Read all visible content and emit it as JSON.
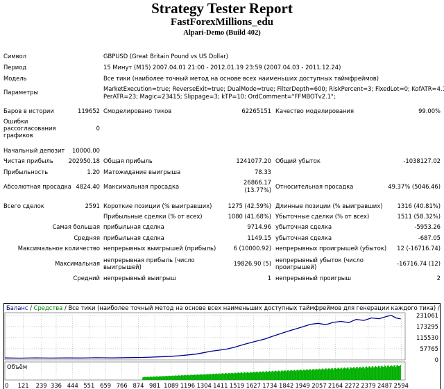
{
  "header": {
    "title": "Strategy Tester Report",
    "ea_name": "FastForexMillions_edu",
    "server": "Alpari-Demo (Build 402)"
  },
  "info": {
    "symbol_label": "Символ",
    "symbol_value": "GBPUSD (Great Britain Pound vs US Dollar)",
    "period_label": "Период",
    "period_value": "15 Минут (M15) 2007.04.01 21:00 - 2012.01.19 23:59 (2007.04.03 - 2011.12.24)",
    "model_label": "Модель",
    "model_value": "Все тики (наиболее точный метод на основе всех наименьших доступных таймфреймов)",
    "params_label": "Параметры",
    "params_line1": "MarketExecution=true; ReverseExit=true; DualMode=true; FilterDepth=600; RiskPercent=3; FixedLot=0; KofATR=4.1;",
    "params_line2": "PerATR=23; Magic=23415; Slippage=3; kTP=10; OrdComment=\"FFMBOTv2.1\";"
  },
  "stats": {
    "bars_label": "Баров в истории",
    "bars_value": "119652",
    "ticks_label": "Смоделировано тиков",
    "ticks_value": "62265151",
    "quality_label": "Качество моделирования",
    "quality_value": "99.00%",
    "errors_label": "Ошибки рассогласования графиков",
    "errors_value": "0",
    "deposit_label": "Начальный депозит",
    "deposit_value": "10000.00",
    "net_label": "Чистая прибыль",
    "net_value": "202950.18",
    "gross_profit_label": "Общая прибыль",
    "gross_profit_value": "1241077.20",
    "gross_loss_label": "Общий убыток",
    "gross_loss_value": "-1038127.02",
    "pf_label": "Прибыльность",
    "pf_value": "1.20",
    "expected_label": "Матожидание выигрыша",
    "expected_value": "78.33",
    "abs_dd_label": "Абсолютная просадка",
    "abs_dd_value": "4824.40",
    "max_dd_label": "Максимальная просадка",
    "max_dd_value_1": "26866.17",
    "max_dd_value_2": "(13.77%)",
    "rel_dd_label": "Относительная просадка",
    "rel_dd_value": "49.37% (5046.46)",
    "trades_label": "Всего сделок",
    "trades_value": "2591",
    "short_label": "Короткие позиции (% выигравших)",
    "short_value": "1275 (42.59%)",
    "long_label": "Длинные позиции (% выигравших)",
    "long_value": "1316 (40.81%)",
    "profit_trades_label": "Прибыльные сделки (% от всех)",
    "profit_trades_value": "1080 (41.68%)",
    "loss_trades_label": "Убыточные сделки (% от всех)",
    "loss_trades_value": "1511 (58.32%)",
    "largest_label": "Самая большая",
    "largest_profit_label": "прибыльная сделка",
    "largest_profit_value": "9714.96",
    "largest_loss_label": "убыточная сделка",
    "largest_loss_value": "-5953.26",
    "average_label": "Средняя",
    "avg_profit_label": "прибыльная сделка",
    "avg_profit_value": "1149.15",
    "avg_loss_label": "убыточная сделка",
    "avg_loss_value": "-687.05",
    "max_count_label": "Максимальное количество",
    "cons_wins_label": "непрерывных выигрышей (прибыль)",
    "cons_wins_value": "6 (10000.92)",
    "cons_losses_label": "непрерывных проигрышей (убыток)",
    "cons_losses_value": "12 (-16716.74)",
    "maximal_label": "Максимальная",
    "cons_profit_label": "непрерывная прибыль (число выигрышей)",
    "cons_profit_value": "19826.90 (5)",
    "cons_loss_label": "непрерывный убыток (число проигрышей)",
    "cons_loss_value": "-16716.74 (12)",
    "avg_cons_label": "Средний",
    "avg_cons_wins_label": "непрерывный выигрыш",
    "avg_cons_wins_value": "1",
    "avg_cons_losses_label": "непрерывный проигрыш",
    "avg_cons_losses_value": "2"
  },
  "colors": {
    "balance": "#00008b",
    "equity": "#008000",
    "volume": "#00b000"
  },
  "chart_data": {
    "type": "line",
    "legend_balance": "Баланс",
    "legend_equity": "Средства",
    "legend_model": "Все тики (наиболее точный метод на основе всех наименьших доступных таймфреймов для генерации каждого тика)",
    "legend_quality": "99.00%",
    "volume_label": "Объём",
    "y_ticks": [
      "231061",
      "173295",
      "115530",
      "57765",
      "0"
    ],
    "y_tick_values": [
      231061,
      173295,
      115530,
      57765,
      0
    ],
    "x_ticks": [
      "0",
      "121",
      "239",
      "336",
      "444",
      "551",
      "659",
      "766",
      "874",
      "981",
      "1089",
      "1196",
      "1304",
      "1411",
      "1519",
      "1627",
      "1734",
      "1842",
      "1949",
      "2057",
      "2164",
      "2272",
      "2379",
      "2487",
      "2594"
    ],
    "xlim": [
      0,
      2620
    ],
    "ylim": [
      0,
      245000
    ],
    "series": [
      {
        "name": "Баланс",
        "x": [
          0,
          100,
          200,
          300,
          400,
          500,
          600,
          700,
          800,
          900,
          950,
          1000,
          1050,
          1100,
          1150,
          1200,
          1250,
          1300,
          1350,
          1400,
          1450,
          1500,
          1550,
          1600,
          1650,
          1700,
          1750,
          1800,
          1850,
          1900,
          1950,
          2000,
          2050,
          2100,
          2150,
          2200,
          2250,
          2300,
          2350,
          2400,
          2450,
          2500,
          2530,
          2560,
          2591
        ],
        "y": [
          10000,
          9000,
          10500,
          9500,
          10000,
          9600,
          11000,
          10000,
          11500,
          12500,
          14000,
          15500,
          17000,
          19000,
          22000,
          26000,
          30000,
          37000,
          45000,
          50000,
          56000,
          65000,
          77000,
          88000,
          98000,
          108000,
          122000,
          135000,
          148000,
          160000,
          172000,
          185000,
          190000,
          183000,
          195000,
          200000,
          194000,
          210000,
          205000,
          218000,
          214000,
          226000,
          231000,
          218000,
          212950
        ]
      }
    ],
    "volume": {
      "start_x": 900,
      "end_x": 2591,
      "start_level": 0.2,
      "end_level": 1.0
    }
  }
}
